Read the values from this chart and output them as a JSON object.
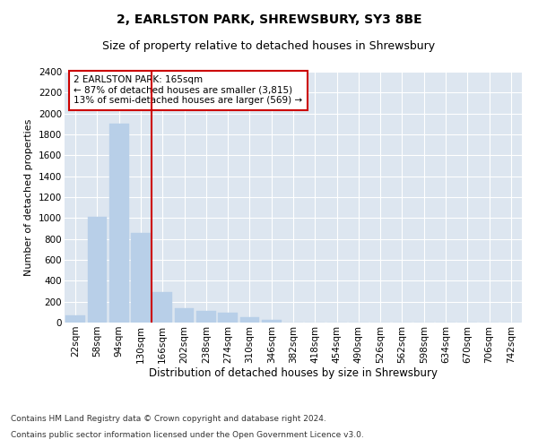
{
  "title1": "2, EARLSTON PARK, SHREWSBURY, SY3 8BE",
  "title2": "Size of property relative to detached houses in Shrewsbury",
  "xlabel": "Distribution of detached houses by size in Shrewsbury",
  "ylabel": "Number of detached properties",
  "categories": [
    "22sqm",
    "58sqm",
    "94sqm",
    "130sqm",
    "166sqm",
    "202sqm",
    "238sqm",
    "274sqm",
    "310sqm",
    "346sqm",
    "382sqm",
    "418sqm",
    "454sqm",
    "490sqm",
    "526sqm",
    "562sqm",
    "598sqm",
    "634sqm",
    "670sqm",
    "706sqm",
    "742sqm"
  ],
  "values": [
    65,
    1010,
    1900,
    860,
    290,
    135,
    110,
    95,
    55,
    30,
    0,
    0,
    0,
    0,
    0,
    0,
    0,
    0,
    0,
    0,
    0
  ],
  "bar_color": "#b8cfe8",
  "bar_edgecolor": "#b8cfe8",
  "vline_color": "#cc0000",
  "ylim": [
    0,
    2400
  ],
  "yticks": [
    0,
    200,
    400,
    600,
    800,
    1000,
    1200,
    1400,
    1600,
    1800,
    2000,
    2200,
    2400
  ],
  "annotation_title": "2 EARLSTON PARK: 165sqm",
  "annotation_line1": "← 87% of detached houses are smaller (3,815)",
  "annotation_line2": "13% of semi-detached houses are larger (569) →",
  "annotation_box_color": "#ffffff",
  "annotation_border_color": "#cc0000",
  "footer1": "Contains HM Land Registry data © Crown copyright and database right 2024.",
  "footer2": "Contains public sector information licensed under the Open Government Licence v3.0.",
  "plot_bg_color": "#dde6f0",
  "grid_color": "#ffffff",
  "title1_fontsize": 10,
  "title2_fontsize": 9,
  "xlabel_fontsize": 8.5,
  "ylabel_fontsize": 8,
  "tick_fontsize": 7.5,
  "footer_fontsize": 6.5,
  "ann_fontsize": 7.5
}
